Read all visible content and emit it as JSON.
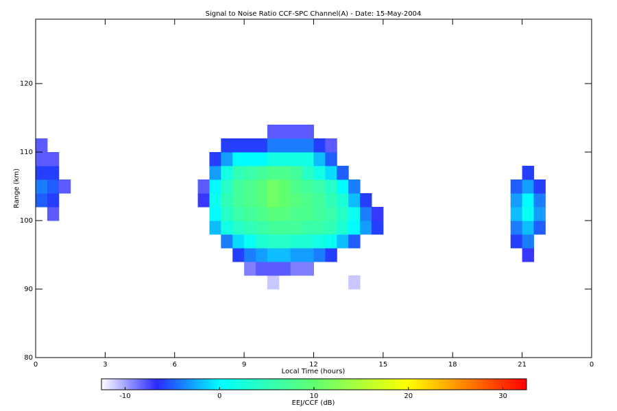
{
  "chart_data": {
    "type": "heatmap",
    "title": "Signal to Noise Ratio CCF-SPC Channel(A) - Date: 15-May-2004",
    "x_label": "Local Time (hours)",
    "y_label": "Range (km)",
    "xlim": [
      0,
      24
    ],
    "xticks": [
      0,
      3,
      6,
      9,
      12,
      15,
      18,
      21,
      {
        "value": 24,
        "label": "0"
      }
    ],
    "ylim": [
      80,
      129.4
    ],
    "yticks": [
      80,
      90,
      100,
      110,
      120
    ],
    "x": [
      0.25,
      0.75,
      1.25,
      1.75,
      2.25,
      2.75,
      3.25,
      3.75,
      4.25,
      4.75,
      5.25,
      5.75,
      6.25,
      6.75,
      7.25,
      7.75,
      8.25,
      8.75,
      9.25,
      9.75,
      10.25,
      10.75,
      11.25,
      11.75,
      12.25,
      12.75,
      13.25,
      13.75,
      14.25,
      14.75,
      15.25,
      15.75,
      16.25,
      16.75,
      17.25,
      17.75,
      18.25,
      18.75,
      19.25,
      19.75,
      20.25,
      20.75,
      21.25,
      21.75,
      22.25,
      22.75,
      23.25,
      23.75
    ],
    "y": [
      91,
      93,
      95,
      97,
      99,
      101,
      103,
      105,
      107,
      109,
      111,
      113
    ],
    "z": [
      [
        null,
        null,
        null,
        null,
        null,
        null,
        null,
        null,
        null,
        null,
        null,
        null,
        null,
        null,
        null,
        null,
        null,
        null,
        null,
        null,
        -11,
        null,
        null,
        null,
        null,
        null,
        null,
        -11,
        null,
        null,
        null,
        null,
        null,
        null,
        null,
        null,
        null,
        null,
        null,
        null,
        null,
        null,
        null,
        null,
        null,
        null,
        null,
        null
      ],
      [
        null,
        null,
        null,
        null,
        null,
        null,
        null,
        null,
        null,
        null,
        null,
        null,
        null,
        null,
        null,
        null,
        null,
        null,
        -9,
        -8,
        -8,
        -8,
        -9,
        -9,
        null,
        null,
        null,
        null,
        null,
        null,
        null,
        null,
        null,
        null,
        null,
        null,
        null,
        null,
        null,
        null,
        null,
        null,
        null,
        null,
        null,
        null,
        null,
        null
      ],
      [
        null,
        null,
        null,
        null,
        null,
        null,
        null,
        null,
        null,
        null,
        null,
        null,
        null,
        null,
        null,
        null,
        null,
        -6,
        -4,
        -3,
        -2,
        -2,
        -3,
        -3,
        -4,
        -6,
        null,
        null,
        null,
        null,
        null,
        null,
        null,
        null,
        null,
        null,
        null,
        null,
        null,
        null,
        null,
        null,
        -7,
        null,
        null,
        null,
        null,
        null
      ],
      [
        null,
        null,
        null,
        null,
        null,
        null,
        null,
        null,
        null,
        null,
        null,
        null,
        null,
        null,
        null,
        null,
        -4,
        -1,
        1,
        3,
        4,
        4,
        3,
        3,
        2,
        1,
        -2,
        -5,
        null,
        null,
        null,
        null,
        null,
        null,
        null,
        null,
        null,
        null,
        null,
        null,
        null,
        -6,
        -4,
        null,
        null,
        null,
        null,
        null
      ],
      [
        null,
        null,
        null,
        null,
        null,
        null,
        null,
        null,
        null,
        null,
        null,
        null,
        null,
        null,
        null,
        -2,
        2,
        4,
        5,
        6,
        7,
        7,
        7,
        6,
        6,
        5,
        3,
        0,
        -3,
        -6,
        null,
        null,
        null,
        null,
        null,
        null,
        null,
        null,
        null,
        null,
        null,
        -4,
        -2,
        -5,
        null,
        null,
        null,
        null
      ],
      [
        null,
        -8,
        null,
        null,
        null,
        null,
        null,
        null,
        null,
        null,
        null,
        null,
        null,
        null,
        null,
        0,
        4,
        6,
        7,
        8,
        9,
        9,
        8,
        8,
        7,
        6,
        4,
        1,
        -4,
        -7,
        null,
        null,
        null,
        null,
        null,
        null,
        null,
        null,
        null,
        null,
        null,
        -2,
        1,
        -3,
        null,
        null,
        null,
        null
      ],
      [
        -5,
        -6,
        null,
        null,
        null,
        null,
        null,
        null,
        null,
        null,
        null,
        null,
        null,
        null,
        -7,
        1,
        5,
        7,
        8,
        9,
        11,
        10,
        9,
        8,
        7,
        5,
        3,
        -2,
        -6,
        null,
        null,
        null,
        null,
        null,
        null,
        null,
        null,
        null,
        null,
        null,
        null,
        -3,
        0,
        -4,
        null,
        null,
        null,
        null
      ],
      [
        -4,
        -5,
        -8,
        null,
        null,
        null,
        null,
        null,
        null,
        null,
        null,
        null,
        null,
        null,
        -8,
        0,
        4,
        7,
        8,
        9,
        11,
        10,
        8,
        7,
        6,
        4,
        0,
        -4,
        null,
        null,
        null,
        null,
        null,
        null,
        null,
        null,
        null,
        null,
        null,
        null,
        null,
        -5,
        -3,
        -6,
        null,
        null,
        null,
        null
      ],
      [
        -6,
        -6,
        null,
        null,
        null,
        null,
        null,
        null,
        null,
        null,
        null,
        null,
        null,
        null,
        null,
        -3,
        2,
        5,
        6,
        7,
        8,
        8,
        7,
        4,
        2,
        -1,
        -5,
        null,
        null,
        null,
        null,
        null,
        null,
        null,
        null,
        null,
        null,
        null,
        null,
        null,
        null,
        null,
        -6,
        null,
        null,
        null,
        null,
        null
      ],
      [
        -8,
        -8,
        null,
        null,
        null,
        null,
        null,
        null,
        null,
        null,
        null,
        null,
        null,
        null,
        null,
        -6,
        -3,
        0,
        0,
        0,
        2,
        2,
        2,
        2,
        -2,
        -5,
        null,
        null,
        null,
        null,
        null,
        null,
        null,
        null,
        null,
        null,
        null,
        null,
        null,
        null,
        null,
        null,
        null,
        null,
        null,
        null,
        null,
        null
      ],
      [
        -8,
        null,
        null,
        null,
        null,
        null,
        null,
        null,
        null,
        null,
        null,
        null,
        null,
        null,
        null,
        null,
        -6,
        -6,
        -6,
        -6,
        -4,
        -4,
        -4,
        -4,
        -6,
        -8,
        null,
        null,
        null,
        null,
        null,
        null,
        null,
        null,
        null,
        null,
        null,
        null,
        null,
        null,
        null,
        null,
        null,
        null,
        null,
        null,
        null,
        null
      ],
      [
        null,
        null,
        null,
        null,
        null,
        null,
        null,
        null,
        null,
        null,
        null,
        null,
        null,
        null,
        null,
        null,
        null,
        null,
        null,
        null,
        -8,
        -8,
        -8,
        -8,
        null,
        null,
        null,
        null,
        null,
        null,
        null,
        null,
        null,
        null,
        null,
        null,
        null,
        null,
        null,
        null,
        null,
        null,
        null,
        null,
        null,
        null,
        null,
        null
      ]
    ],
    "colorbar_label": "EEJ/CCF (dB)",
    "clim": [
      -12.5,
      32.5
    ],
    "cticks": [
      -10,
      0,
      10,
      20,
      30
    ]
  }
}
